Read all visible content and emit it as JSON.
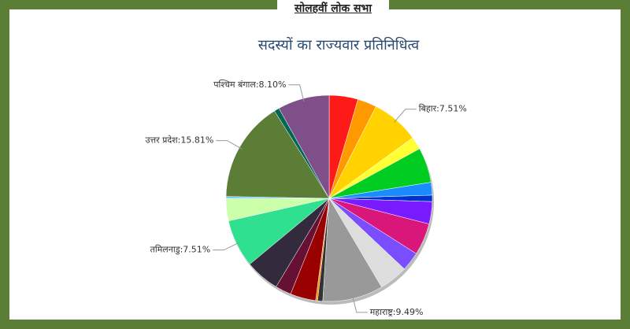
{
  "header": {
    "title": "सोलहवीं लोक सभा"
  },
  "chart_data": {
    "type": "pie",
    "title": "सदस्यों का राज्यवार प्रतिनिधित्व",
    "categories": [
      null,
      null,
      "बिहार:7.51%",
      null,
      null,
      null,
      null,
      null,
      null,
      null,
      null,
      "महाराष्ट्र:9.49%",
      null,
      null,
      null,
      null,
      null,
      "तमिलनाडु:7.51%",
      null,
      null,
      "उत्तर प्रदेश:15.81%",
      null,
      "पश्चिम बंगाल:8.10%"
    ],
    "values": [
      4.5,
      3.0,
      7.51,
      2.0,
      5.5,
      2.0,
      1.0,
      3.5,
      5.0,
      3.0,
      4.5,
      9.49,
      0.8,
      0.3,
      4.0,
      2.5,
      5.38,
      7.51,
      3.5,
      0.3,
      15.81,
      0.8,
      8.1
    ],
    "colors": [
      "#ff1a1a",
      "#ff9900",
      "#ffd200",
      "#ffff33",
      "#00cc22",
      "#1a8cff",
      "#0033cc",
      "#7a1aff",
      "#d9177a",
      "#7a4dff",
      "#dddddd",
      "#999999",
      "#333333",
      "#ff8800",
      "#990000",
      "#661133",
      "#332b3d",
      "#2ee08f",
      "#ccffaa",
      "#66ccff",
      "#5b7d36",
      "#006655",
      "#7f4f8a"
    ]
  }
}
